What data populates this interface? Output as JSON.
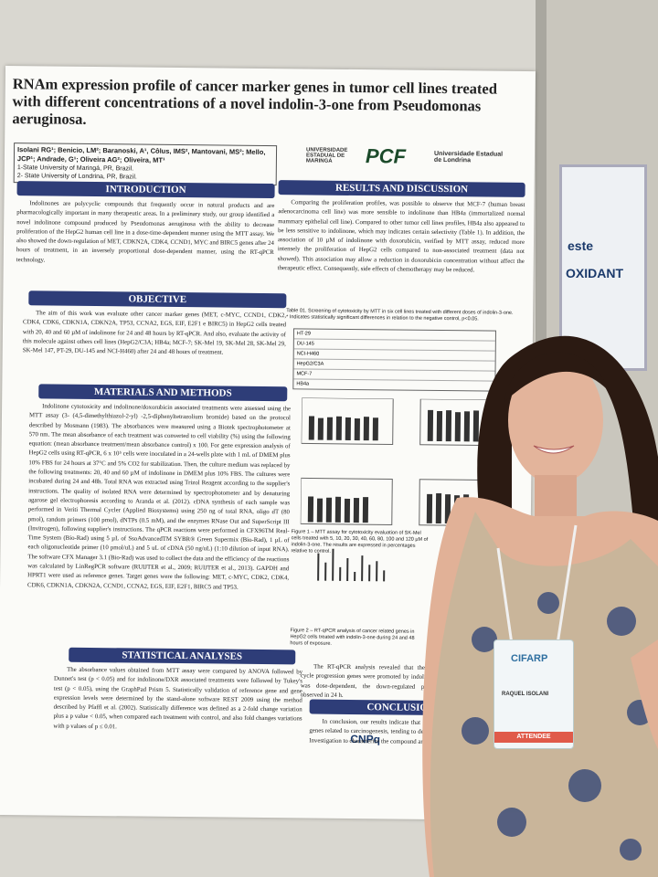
{
  "poster": {
    "title": "RNAm expression profile of cancer marker genes in tumor cell lines treated with different concentrations of a novel indolin-3-one from Pseudomonas aeruginosa.",
    "authors": "Isolani RG¹; Benicio, LM²; Baranoski, A¹, Côlus, IMS², Mantovani, MS²; Mello, JCP¹; Andrade, G¹; Oliveira AG²; Oliveira, MT¹",
    "affiliations": [
      "1-State University of Maringá, PR, Brazil.",
      "2- State University of Londrina, PR, Brazil."
    ],
    "logos": [
      "UNIVERSIDADE ESTADUAL DE MARINGÁ",
      "PCF",
      "Universidade Estadual de Londrina"
    ],
    "sections": [
      {
        "heading": "INTRODUCTION",
        "text": "Indolinones are polycyclic compounds that frequently occur in natural products and are pharmacologically important in many therapeutic areas. In a preliminary study, our group identified a novel indolinone compound produced by Pseudomonas aeruginosa with the ability to decrease proliferation of the HepG2 human cell line in a dose-time-dependent manner using the MTT assay. We also showed the down-regulation of MET, CDKN2A, CDK4, CCND1, MYC and BIRC5 genes after 24 hours of treatment, in an inversely proportional dose-dependent manner, using the RT-qPCR technology."
      },
      {
        "heading": "OBJECTIVE",
        "text": "The aim of this work was evaluate other cancer marker genes (MET, c-MYC, CCND1, CDK2, CDK4, CDK6, CDKN1A, CDKN2A, TP53, CCNA2, EGS, EIF, E2F1 e BIRC5) in HepG2 cells treated with 20, 40 and 60 µM of indolinone for 24 and 48 hours by RT-qPCR. And also, evaluate the activity of this molecule against others cell lines (HepG2/C3A; HB4a; MCF-7; SK-Mel 19, SK-Mel 28, SK-Mel 29, SK-Mel 147, PT-29, DU-145 and NCI-H460) after 24 and 48 hours of treatment."
      },
      {
        "heading": "MATERIALS AND METHODS",
        "text": "Indolinone cytotoxicity and indolinone/doxorubicin associated treatments were assessed using the MTT assay (3- (4,5-dimethylthiazol-2-yl) -2,5-diphenyltetrazolium bromide) based on the protocol described by Mosmann (1983). The absorbances were measured using a Biotek spectrophotometer at 570 nm. The mean absorbance of each treatment was converted to cell viability (%) using the following equation: (mean absorbance treatment/mean absorbance control) x 100. For gene expression analysis of HepG2 cells using RT-qPCR, 6 x 10⁵ cells were inoculated in a 24-wells plate with 1 mL of DMEM plus 10% FBS for 24 hours at 37°C and 5% CO2 for stabilization. Then, the culture medium was replaced by the following treatments: 20, 40 and 60 µM of indolinone in DMEM plus 10% FBS. The cultures were incubated during 24 and 48h. Total RNA was extracted using Trizol Reagent according to the supplier's instructions. The quality of isolated RNA were determined by spectrophotometer and by denaturing agarose gel electrophoresis according to Aranda et al. (2012). cDNA synthesis of each sample was performed in Veriti Thermal Cycler (Applied Biosystems) using 250 ng of total RNA, oligo dT (80 pmol), random primers (100 pmol), dNTPs (0.5 mM), and the enzymes RNase Out and SuperScript III (Invitrogen), following supplier's instructions. The qPCR reactions were performed in CFX96TM Real-Time System (Bio-Rad) using 5 µL of SsoAdvancedTM SYBR® Green Supermix (Bio-Rad), 1 µL of each oligonucleotide primer (10 pmol/uL) and 5 uL of cDNA (50 ng/uL) (1:10 dilution of input RNA). The software CFX Manager 3.1 (Bio-Rad) was used to collect the data and the efficiency of the reactions was calculated by LinRegPCR software (RUIJTER et al., 2009; RUIJTER et al., 2013). GAPDH and HPRT1 were used as reference genes. Target genes were the following: MET, c-MYC, CDK2, CDK4, CDK6, CDKN1A, CDKN2A, CCND1, CCNA2, EGS, EIF, E2F1, BIRC5 and TP53."
      },
      {
        "heading": "STATISTICAL ANALYSES",
        "text": "The absorbance values obtained from MTT assay were compared by ANOVA followed by Dunnet's test (p < 0.05) and for indolinone/DXR associated treatments were followed by Tukey's test (p < 0.05), using the GraphPad Prism 5. Statistically validation of reference gene and gene expression levels were determined by the stand-alone software REST 2009 using the method described by Pfaffl et al. (2002). Statistically difference was defined as a 2-fold change variation plus a p value < 0.05, when compared each treatment with control, and also fold changes variations with p values of p ≤ 0.01."
      },
      {
        "heading": "RESULTS AND DISCUSSION",
        "text": "Comparing the proliferation profiles, was possible to observe that MCF-7 (human breast adenocarcinoma cell line) was more sensible to indolinone than HB4a (immortalized normal mammary epithelial cell line). Compared to other tumor cell lines profiles, HB4a also appeared to be less sensitive to indolinone, which may indicates certain selectivity (Table 1). In addition, the association of 10 µM of indolinone with doxorubicin, verified by MTT assay, reduced more intensely the proliferation of HepG2 cells compared to non-associated treatment (data not showed). This association may allow a reduction in doxorubicin concentration without affect the therapeutic effect. Consequently, side effects of chemotherapy may be reduced."
      },
      {
        "heading": "CONCLUSION",
        "text": "In conclusion, our results indicate that indolinone regulates genes related to carcinogenesis, tending to decrease proliferation. Investigation to characterize the compound are ongoing."
      }
    ],
    "table_caption": "Table 01. Screening of cytotoxicity by MTT in six cell lines treated with different doses of indolin-3-one. * Indicates statistically significant differences in relation to the negative control, p<0.05.",
    "table_rows": [
      "HT-29",
      "DU-145",
      "NCI-H460",
      "HepG2/C3A",
      "MCF-7",
      "HB4a"
    ],
    "figure_captions": [
      "Figure 1 – MTT assay for cytotoxicity evaluation of SK-Mel cells treated with 5, 10, 20, 30, 40, 60, 80, 100 and 120 µM of indolin-3-one. The results are expressed in percentages relative to control.",
      "Figure 2 – RT-qPCR analysis of cancer related genes in HepG2 cells treated with indolin-3-one during 24 and 48 hours of exposure.",
      "The RT-qPCR analysis revealed that the cell cycle progression genes were promoted by indolinone was dose-dependent, the down-regulated profile observed in 24 h."
    ],
    "sponsor": "CNPq"
  },
  "badge": {
    "event": "CIFARP",
    "name": "RAQUEL ISOLANI",
    "role": "ATTENDEE"
  },
  "background_poster": {
    "word": "OXIDANT",
    "fragment": "este"
  }
}
